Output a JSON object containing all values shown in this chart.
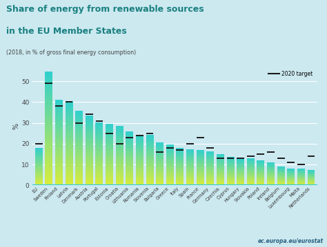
{
  "title_line1": "Share of energy from renewable sources",
  "title_line2": "in the EU Member States",
  "subtitle": "(2018, in % of gross final energy consumption)",
  "ylabel": "%",
  "categories": [
    "EU",
    "Sweden",
    "Finland",
    "Latvia",
    "Denmark",
    "Austria",
    "Portugal",
    "Estonia",
    "Croatia",
    "Lithuania",
    "Romania",
    "Slovenia",
    "Bulgaria",
    "Greece",
    "Italy",
    "Spain",
    "France",
    "Germany",
    "Czechia",
    "Cyprus",
    "Hungary",
    "Slovakia",
    "Poland",
    "Ireland",
    "Belgium",
    "Luxembourg",
    "Malta",
    "Netherlands"
  ],
  "values": [
    18.0,
    54.6,
    41.2,
    40.3,
    35.8,
    33.6,
    30.3,
    29.5,
    28.5,
    25.8,
    24.3,
    24.1,
    20.5,
    19.7,
    17.8,
    17.4,
    17.0,
    16.4,
    15.1,
    13.8,
    12.6,
    13.0,
    12.0,
    11.1,
    9.1,
    7.9,
    8.0,
    7.4
  ],
  "targets": [
    20.0,
    49.0,
    38.0,
    40.0,
    30.0,
    34.0,
    31.0,
    25.0,
    20.0,
    23.0,
    24.0,
    25.0,
    16.0,
    18.0,
    17.0,
    20.0,
    23.0,
    18.0,
    13.0,
    13.0,
    13.0,
    14.0,
    15.0,
    16.0,
    13.0,
    11.0,
    10.0,
    14.0
  ],
  "background_color": "#cce9f0",
  "bar_color_top": "#2ecfcf",
  "bar_color_bottom": "#d8ec3c",
  "title_color": "#1a8080",
  "grid_color": "#ffffff",
  "watermark": "ec.europa.eu/eurostat",
  "ylim": [
    0,
    57
  ],
  "yticks": [
    0,
    10,
    20,
    30,
    40,
    50
  ]
}
